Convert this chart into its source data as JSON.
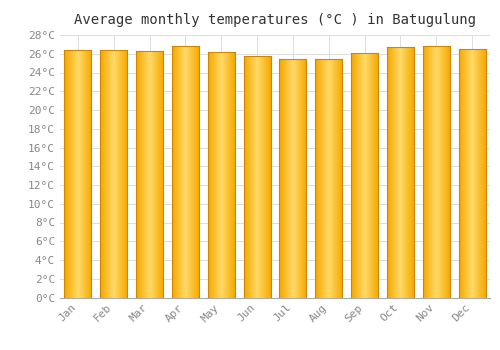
{
  "title": "Average monthly temperatures (°C ) in Batugulung",
  "months": [
    "Jan",
    "Feb",
    "Mar",
    "Apr",
    "May",
    "Jun",
    "Jul",
    "Aug",
    "Sep",
    "Oct",
    "Nov",
    "Dec"
  ],
  "temperatures": [
    26.4,
    26.4,
    26.3,
    26.8,
    26.2,
    25.8,
    25.4,
    25.4,
    26.1,
    26.7,
    26.8,
    26.5
  ],
  "ylim": [
    0,
    28
  ],
  "ytick_step": 2,
  "bar_color_center": "#FFD966",
  "bar_color_edge": "#F5A800",
  "bar_edge_color": "#CC8800",
  "background_color": "#FFFFFF",
  "grid_color": "#DDDDDD",
  "title_fontsize": 10,
  "tick_fontsize": 8,
  "title_color": "#333333",
  "tick_color": "#888888"
}
